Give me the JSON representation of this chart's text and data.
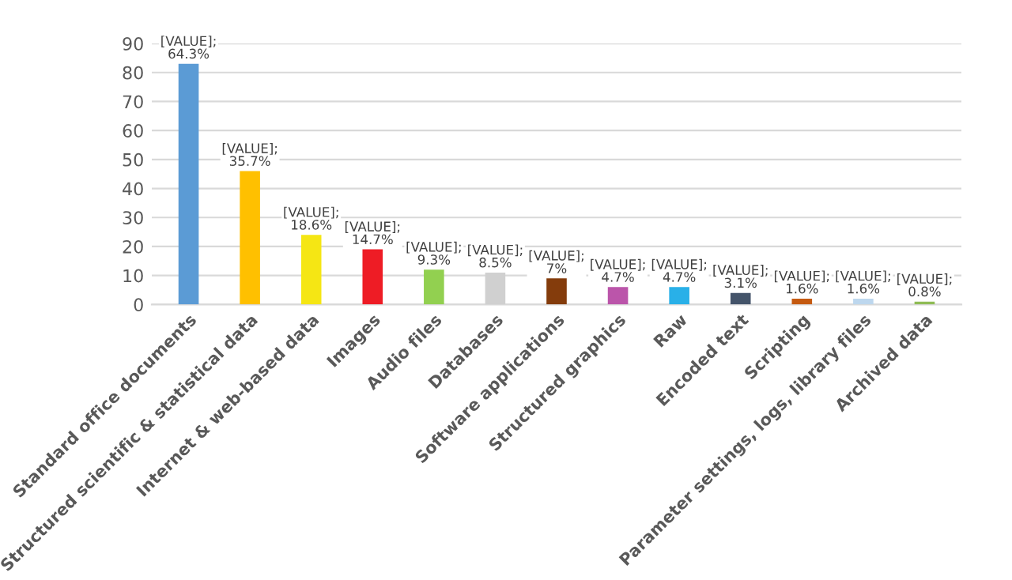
{
  "chart_data": {
    "type": "bar",
    "categories": [
      "Standard office documents",
      "Structured scientific & statistical data",
      "Internet & web-based data",
      "Images",
      "Audio files",
      "Databases",
      "Software applications",
      "Structured graphics",
      "Raw",
      "Encoded text",
      "Scripting",
      "Parameter settings, logs, library files",
      "Archived data"
    ],
    "values": [
      83,
      46,
      24,
      19,
      12,
      11,
      9,
      6,
      6,
      4,
      2,
      2,
      1
    ],
    "colors": [
      "#5b9bd5",
      "#ffc000",
      "#f5e614",
      "#ee1c25",
      "#92d050",
      "#d0d0d0",
      "#843c0c",
      "#bb55aa",
      "#29b0e8",
      "#44546a",
      "#c55a11",
      "#bdd7ee",
      "#8fbc55"
    ],
    "annotations": [
      {
        "text": "[VALUE]; 64.3%",
        "x": "Standard office documents",
        "y": 83
      },
      {
        "text": "[VALUE]; 35.7%",
        "x": "Structured scientific & statistical data",
        "y": 46
      },
      {
        "text": "[VALUE]; 18.6%",
        "x": "Internet & web-based data",
        "y": 24
      },
      {
        "text": "[VALUE]; 14.7%",
        "x": "Images",
        "y": 19
      },
      {
        "text": "[VALUE]; 9.3%",
        "x": "Audio files",
        "y": 12
      },
      {
        "text": "[VALUE]; 8.5%",
        "x": "Databases",
        "y": 11
      },
      {
        "text": "[VALUE]; 7%",
        "x": "Software applications",
        "y": 9
      },
      {
        "text": "[VALUE]; 4.7%",
        "x": "Structured graphics",
        "y": 6
      },
      {
        "text": "[VALUE]; 4.7%",
        "x": "Raw",
        "y": 6
      },
      {
        "text": "[VALUE]; 3.1%",
        "x": "Encoded text",
        "y": 4
      },
      {
        "text": "[VALUE]; 1.6%",
        "x": "Scripting",
        "y": 2
      },
      {
        "text": "[VALUE]; 1.6%",
        "x": "Parameter settings, logs, library files",
        "y": 2
      },
      {
        "text": "[VALUE]; 0.8%",
        "x": "Archived data",
        "y": 1
      }
    ],
    "ylim": [
      0,
      90
    ],
    "yticks": [
      0,
      10,
      20,
      30,
      40,
      50,
      60,
      70,
      80,
      90
    ],
    "grid": "y",
    "legend": false
  }
}
